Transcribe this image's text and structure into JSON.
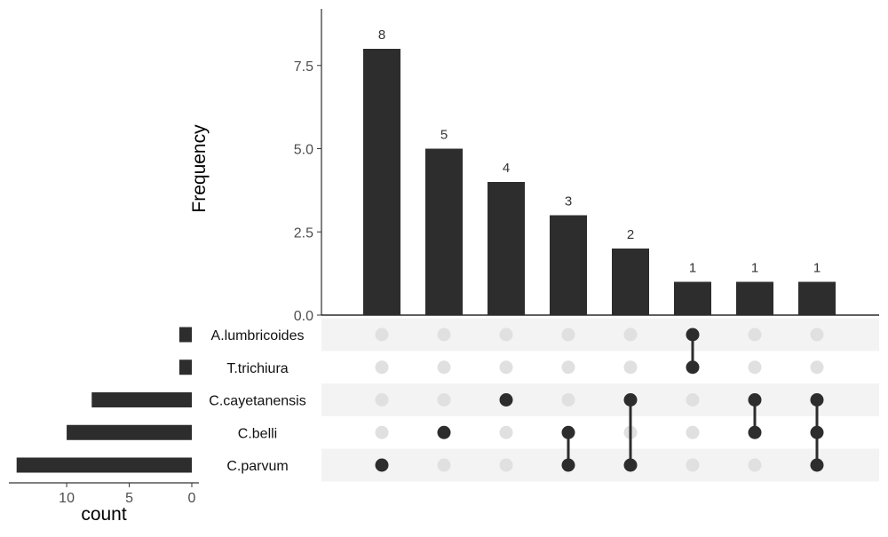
{
  "chart_data": {
    "type": "upset",
    "intersections": {
      "ylabel": "Frequency",
      "ylim": [
        0,
        9.2
      ],
      "ticks": [
        "0.0",
        "2.5",
        "5.0",
        "7.5"
      ],
      "tick_values": [
        0,
        2.5,
        5,
        7.5
      ],
      "bars": [
        {
          "value": 8,
          "label": "8",
          "members": [
            "C.parvum"
          ]
        },
        {
          "value": 5,
          "label": "5",
          "members": [
            "C.belli"
          ]
        },
        {
          "value": 4,
          "label": "4",
          "members": [
            "C.cayetanensis"
          ]
        },
        {
          "value": 3,
          "label": "3",
          "members": [
            "C.belli",
            "C.parvum"
          ]
        },
        {
          "value": 2,
          "label": "2",
          "members": [
            "C.cayetanensis",
            "C.parvum"
          ]
        },
        {
          "value": 1,
          "label": "1",
          "members": [
            "A.lumbricoides",
            "T.trichiura"
          ]
        },
        {
          "value": 1,
          "label": "1",
          "members": [
            "C.cayetanensis",
            "C.belli"
          ]
        },
        {
          "value": 1,
          "label": "1",
          "members": [
            "C.cayetanensis",
            "C.belli",
            "C.parvum"
          ]
        }
      ]
    },
    "sets": {
      "names": [
        "A.lumbricoides",
        "T.trichiura",
        "C.cayetanensis",
        "C.belli",
        "C.parvum"
      ],
      "counts": [
        1,
        1,
        8,
        10,
        14
      ],
      "xlabel": "count",
      "ticks": [
        "10",
        "5",
        "0"
      ],
      "tick_values": [
        10,
        5,
        0
      ],
      "xlim_max": 14.7
    },
    "colors": {
      "bar": "#2d2d2d",
      "dot_active": "#2d2d2d",
      "dot_inactive": "#e0e0e0",
      "stripe": "#f3f3f3",
      "axis": "#000000",
      "tick_text": "#4d4d4d"
    }
  }
}
